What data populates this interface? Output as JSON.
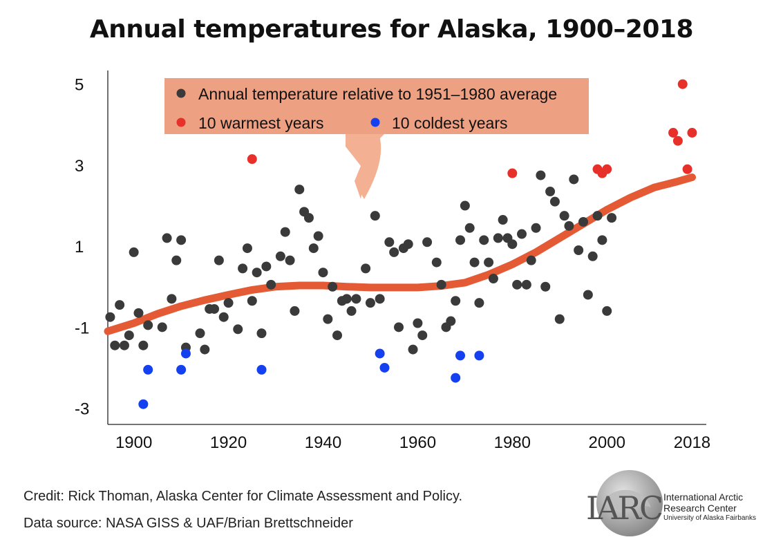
{
  "title": "Annual temperatures for Alaska, 1900–2018",
  "credits": {
    "line1": "Credit: Rick Thoman, Alaska Center for Climate Assessment and Policy.",
    "line2": "Data source: NASA GISS & UAF/Brian Brettschneider"
  },
  "logo": {
    "mark": "IARC",
    "line1": "International Arctic",
    "line2": "Research Center",
    "line3": "University of Alaska Fairbanks"
  },
  "colors": {
    "normal": "#3a3a3a",
    "warm": "#e8302a",
    "cold": "#1540f0",
    "trend": "#e35a35",
    "legend_bg": "#eea082",
    "arrow": "#f3b092",
    "axis": "#222222"
  },
  "chart_data": {
    "type": "scatter",
    "xlim": [
      1894.5,
      2021
    ],
    "ylim": [
      -3.4,
      5.2
    ],
    "x_ticks": [
      1900,
      1920,
      1940,
      1960,
      1980,
      2000,
      2018
    ],
    "y_ticks": [
      5,
      3,
      1,
      -1,
      -3
    ],
    "grid": false,
    "legend": {
      "placement": "top",
      "items": [
        {
          "label": "Annual temperature relative to 1951–1980 average",
          "color": "normal"
        },
        {
          "label": "10 warmest years",
          "color": "warm"
        },
        {
          "label": "10 coldest years",
          "color": "cold"
        }
      ]
    },
    "series": [
      {
        "name": "Annual temperature relative to 1951–1980 average",
        "points": [
          [
            1895,
            -0.75
          ],
          [
            1896,
            -1.45
          ],
          [
            1897,
            -0.45
          ],
          [
            1898,
            -1.45
          ],
          [
            1899,
            -1.2
          ],
          [
            1900,
            0.85
          ],
          [
            1901,
            -0.65
          ],
          [
            1902,
            -1.45
          ],
          [
            1903,
            -0.95
          ],
          [
            1906,
            -1.0
          ],
          [
            1907,
            1.2
          ],
          [
            1908,
            -0.3
          ],
          [
            1909,
            0.65
          ],
          [
            1910,
            1.15
          ],
          [
            1911,
            -1.5
          ],
          [
            1914,
            -1.15
          ],
          [
            1915,
            -1.55
          ],
          [
            1916,
            -0.55
          ],
          [
            1917,
            -0.55
          ],
          [
            1918,
            0.65
          ],
          [
            1919,
            -0.75
          ],
          [
            1920,
            -0.4
          ],
          [
            1922,
            -1.05
          ],
          [
            1923,
            0.45
          ],
          [
            1924,
            0.95
          ],
          [
            1925,
            -0.35
          ],
          [
            1926,
            0.35
          ],
          [
            1927,
            -1.15
          ],
          [
            1928,
            0.5
          ],
          [
            1929,
            0.05
          ],
          [
            1931,
            0.75
          ],
          [
            1932,
            1.35
          ],
          [
            1933,
            0.65
          ],
          [
            1934,
            -0.6
          ],
          [
            1935,
            2.4
          ],
          [
            1936,
            1.85
          ],
          [
            1937,
            1.7
          ],
          [
            1938,
            0.95
          ],
          [
            1939,
            1.25
          ],
          [
            1940,
            0.35
          ],
          [
            1941,
            -0.8
          ],
          [
            1942,
            0.0
          ],
          [
            1943,
            -1.2
          ],
          [
            1944,
            -0.35
          ],
          [
            1945,
            -0.3
          ],
          [
            1946,
            -0.6
          ],
          [
            1947,
            -0.3
          ],
          [
            1949,
            0.45
          ],
          [
            1950,
            -0.4
          ],
          [
            1951,
            1.75
          ],
          [
            1952,
            -0.3
          ],
          [
            1954,
            1.1
          ],
          [
            1955,
            0.85
          ],
          [
            1956,
            -1.0
          ],
          [
            1957,
            0.95
          ],
          [
            1958,
            1.05
          ],
          [
            1959,
            -1.55
          ],
          [
            1960,
            -0.9
          ],
          [
            1961,
            -1.2
          ],
          [
            1962,
            1.1
          ],
          [
            1964,
            0.6
          ],
          [
            1965,
            0.05
          ],
          [
            1966,
            -1.0
          ],
          [
            1967,
            -0.85
          ],
          [
            1968,
            -0.35
          ],
          [
            1969,
            1.15
          ],
          [
            1970,
            2.0
          ],
          [
            1971,
            1.45
          ],
          [
            1972,
            0.6
          ],
          [
            1973,
            -0.4
          ],
          [
            1974,
            1.15
          ],
          [
            1975,
            0.6
          ],
          [
            1976,
            0.2
          ],
          [
            1977,
            1.2
          ],
          [
            1978,
            1.65
          ],
          [
            1979,
            1.2
          ],
          [
            1980,
            1.05
          ],
          [
            1981,
            0.05
          ],
          [
            1982,
            1.3
          ],
          [
            1983,
            0.05
          ],
          [
            1984,
            0.65
          ],
          [
            1985,
            1.45
          ],
          [
            1986,
            2.75
          ],
          [
            1987,
            0.0
          ],
          [
            1988,
            2.35
          ],
          [
            1989,
            2.1
          ],
          [
            1990,
            -0.8
          ],
          [
            1991,
            1.75
          ],
          [
            1992,
            1.5
          ],
          [
            1993,
            2.65
          ],
          [
            1994,
            0.9
          ],
          [
            1995,
            1.6
          ],
          [
            1996,
            -0.2
          ],
          [
            1997,
            0.75
          ],
          [
            1998,
            1.75
          ],
          [
            1999,
            1.15
          ],
          [
            2000,
            -0.6
          ],
          [
            2001,
            1.7
          ]
        ]
      },
      {
        "name": "10 warmest years",
        "points": [
          [
            1925,
            3.15
          ],
          [
            1980,
            2.8
          ],
          [
            1998,
            2.9
          ],
          [
            1999,
            2.8
          ],
          [
            2000,
            2.9
          ],
          [
            2014,
            3.8
          ],
          [
            2015,
            3.6
          ],
          [
            2016,
            5.0
          ],
          [
            2017,
            2.9
          ],
          [
            2018,
            3.8
          ]
        ]
      },
      {
        "name": "10 coldest years",
        "points": [
          [
            1902,
            -2.9
          ],
          [
            1903,
            -2.05
          ],
          [
            1910,
            -2.05
          ],
          [
            1911,
            -1.65
          ],
          [
            1927,
            -2.05
          ],
          [
            1952,
            -1.65
          ],
          [
            1953,
            -2.0
          ],
          [
            1968,
            -2.25
          ],
          [
            1969,
            -1.7
          ],
          [
            1973,
            -1.7
          ]
        ]
      },
      {
        "name": "trend",
        "points": [
          [
            1894.5,
            -1.1
          ],
          [
            1900,
            -0.9
          ],
          [
            1905,
            -0.67
          ],
          [
            1910,
            -0.48
          ],
          [
            1915,
            -0.33
          ],
          [
            1920,
            -0.2
          ],
          [
            1925,
            -0.08
          ],
          [
            1930,
            0.0
          ],
          [
            1935,
            0.03
          ],
          [
            1940,
            0.03
          ],
          [
            1945,
            0.0
          ],
          [
            1950,
            -0.02
          ],
          [
            1955,
            -0.02
          ],
          [
            1960,
            -0.02
          ],
          [
            1965,
            0.02
          ],
          [
            1970,
            0.1
          ],
          [
            1975,
            0.3
          ],
          [
            1980,
            0.55
          ],
          [
            1985,
            0.85
          ],
          [
            1990,
            1.2
          ],
          [
            1995,
            1.55
          ],
          [
            2000,
            1.9
          ],
          [
            2005,
            2.2
          ],
          [
            2010,
            2.45
          ],
          [
            2015,
            2.6
          ],
          [
            2018,
            2.7
          ]
        ]
      }
    ]
  }
}
